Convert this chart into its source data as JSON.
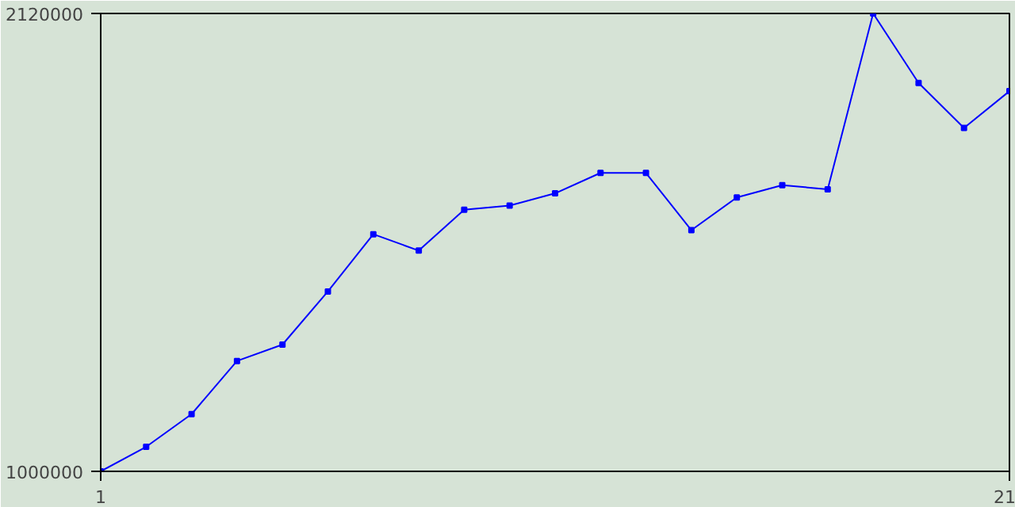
{
  "chart_data": {
    "type": "line",
    "x": [
      1,
      2,
      3,
      4,
      5,
      6,
      7,
      8,
      9,
      10,
      11,
      12,
      13,
      14,
      15,
      16,
      17,
      18,
      19,
      20,
      21
    ],
    "series": [
      {
        "color": "#0000ff",
        "values": [
          1000000,
          1060000,
          1140000,
          1270000,
          1310000,
          1440000,
          1580000,
          1540000,
          1640000,
          1650000,
          1680000,
          1730000,
          1730000,
          1590000,
          1670000,
          1700000,
          1690000,
          2120000,
          1950000,
          1840000,
          1930000
        ]
      }
    ],
    "xlim": [
      1,
      21
    ],
    "ylim": [
      1000000,
      2120000
    ],
    "xticks": [
      1,
      21
    ],
    "yticks": [
      1000000,
      2120000
    ],
    "marker": "square",
    "line_style": "solid"
  }
}
